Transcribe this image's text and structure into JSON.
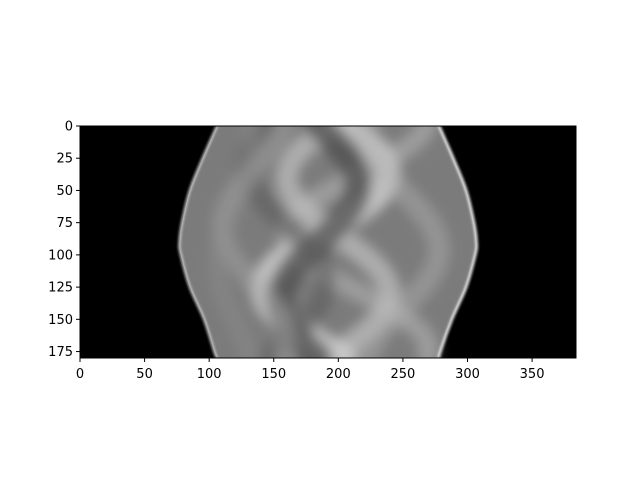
{
  "chart_data": {
    "type": "heatmap",
    "title": "",
    "xlabel": "",
    "ylabel": "",
    "colormap": "gray",
    "image_extent": {
      "x": [
        0,
        384
      ],
      "y": [
        0,
        180
      ]
    },
    "xlim": [
      0,
      384
    ],
    "ylim": [
      180,
      0
    ],
    "x_ticks": [
      0,
      50,
      100,
      150,
      200,
      250,
      300,
      350
    ],
    "y_ticks": [
      0,
      25,
      50,
      75,
      100,
      125,
      150,
      175
    ],
    "x_tick_labels": [
      "0",
      "50",
      "100",
      "150",
      "200",
      "250",
      "300",
      "350"
    ],
    "y_tick_labels": [
      "0",
      "25",
      "50",
      "75",
      "100",
      "125",
      "150",
      "175"
    ],
    "grid": false,
    "support_boundary": {
      "y": [
        0,
        25,
        50,
        75,
        90,
        100,
        125,
        150,
        175,
        180
      ],
      "left_x": [
        106,
        95,
        85,
        79,
        77,
        78,
        85,
        96,
        104,
        106
      ],
      "right_x": [
        278,
        289,
        299,
        305,
        307,
        306,
        299,
        288,
        279,
        278
      ]
    }
  }
}
